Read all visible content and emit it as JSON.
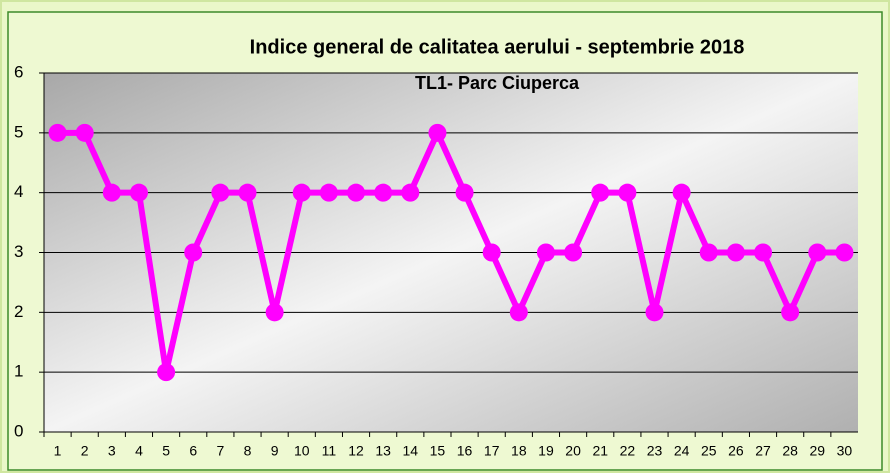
{
  "chart_data": {
    "type": "line",
    "title": "Indice general de calitatea aerului - septembrie 2018",
    "subtitle": "TL1- Parc Ciuperca",
    "categories": [
      "1",
      "2",
      "3",
      "4",
      "5",
      "6",
      "7",
      "8",
      "9",
      "10",
      "11",
      "12",
      "13",
      "14",
      "15",
      "16",
      "17",
      "18",
      "19",
      "20",
      "21",
      "22",
      "23",
      "24",
      "25",
      "26",
      "27",
      "28",
      "29",
      "30"
    ],
    "values": [
      5,
      5,
      4,
      4,
      1,
      3,
      4,
      4,
      2,
      4,
      4,
      4,
      4,
      4,
      5,
      4,
      3,
      2,
      3,
      3,
      4,
      4,
      2,
      4,
      3,
      3,
      3,
      2,
      3,
      3
    ],
    "color": "#ff00ff",
    "ylim": [
      0,
      6
    ],
    "yticks": [
      0,
      1,
      2,
      3,
      4,
      5,
      6
    ],
    "grid": true
  }
}
